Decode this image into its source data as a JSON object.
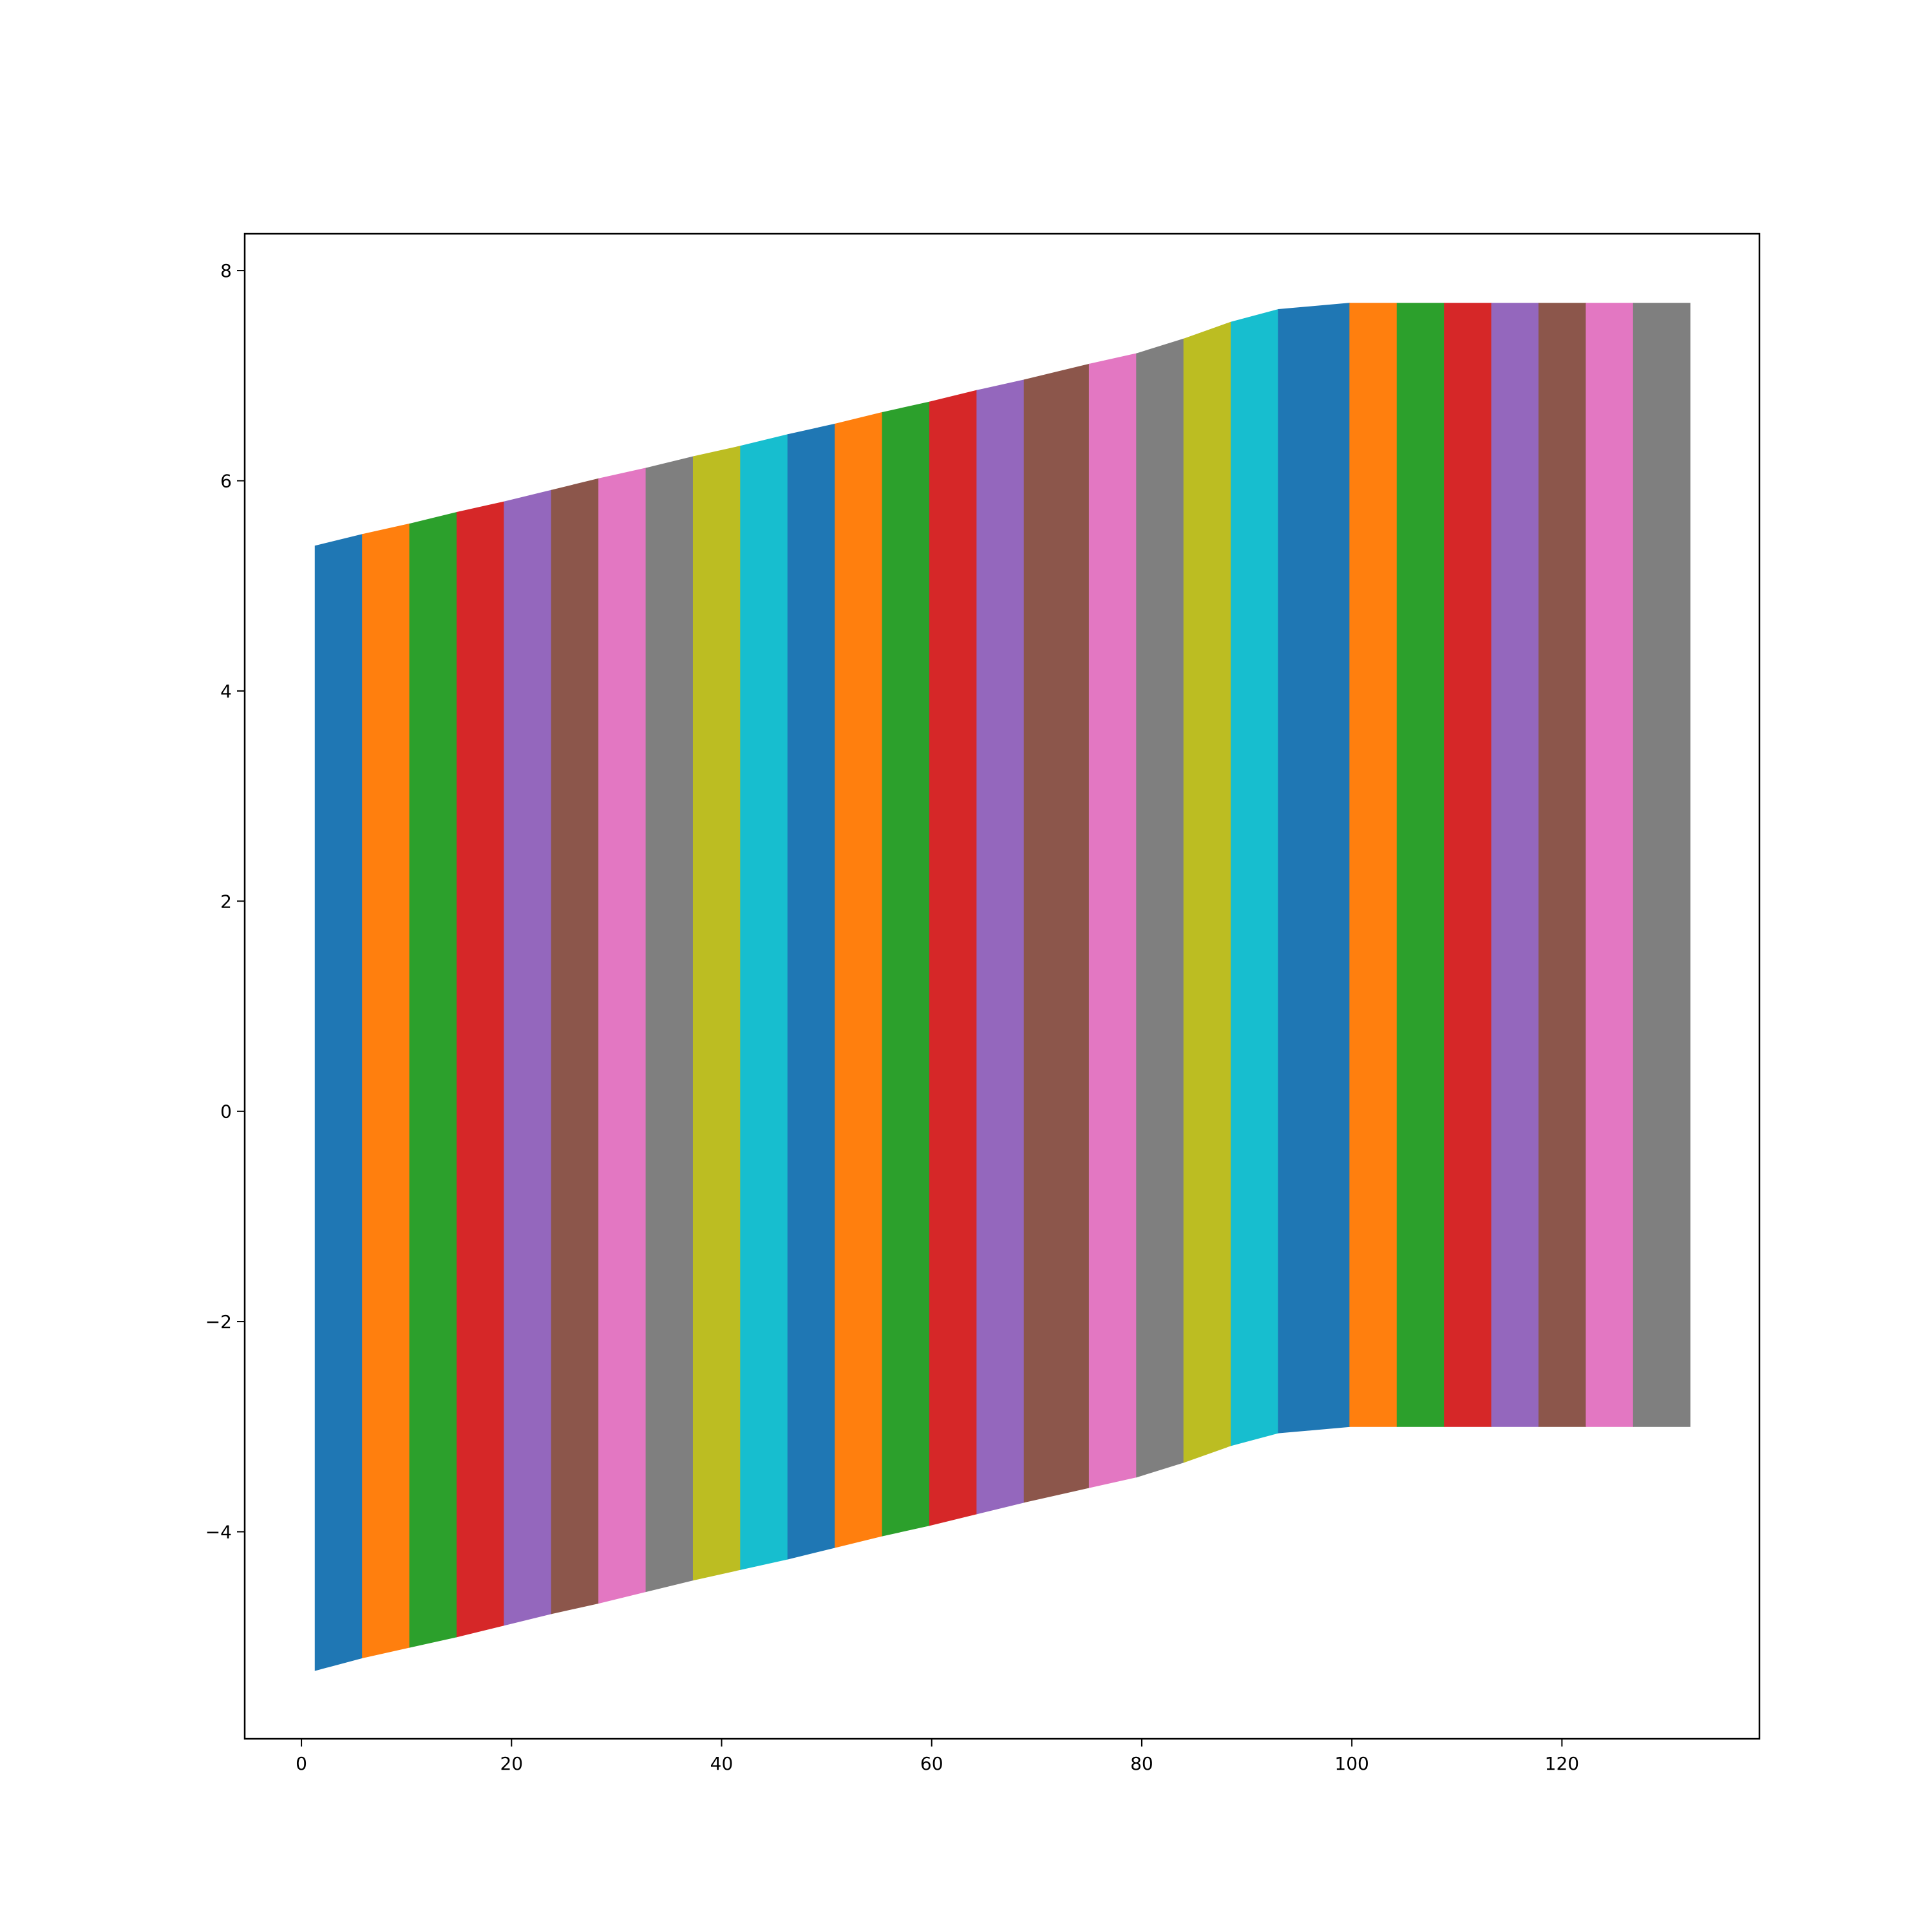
{
  "chart_data": {
    "type": "area",
    "title": "",
    "xlabel": "",
    "ylabel": "",
    "xlim": [
      -5.4,
      138.8
    ],
    "ylim": [
      -5.97,
      8.35
    ],
    "grid": false,
    "legend": "none",
    "xticks": [
      0,
      20,
      40,
      60,
      80,
      100,
      120
    ],
    "yticks": [
      -4,
      -2,
      0,
      2,
      4,
      6,
      8
    ],
    "xtick_labels": [
      "0",
      "20",
      "40",
      "60",
      "80",
      "100",
      "120"
    ],
    "ytick_labels": [
      "−4",
      "−2",
      "0",
      "2",
      "4",
      "6",
      "8"
    ],
    "palette": [
      "#1f77b4",
      "#ff7f0e",
      "#2ca02c",
      "#d62728",
      "#9467bd",
      "#8c564b",
      "#e377c2",
      "#7f7f7f",
      "#bcbd22",
      "#17becf"
    ],
    "bands": [
      {
        "x0": 1.3,
        "x1": 5.8,
        "top": [
          5.38,
          5.49
        ],
        "bottom": [
          -5.32,
          -5.2
        ]
      },
      {
        "x0": 5.8,
        "x1": 10.3,
        "top": [
          5.49,
          5.59
        ],
        "bottom": [
          -5.2,
          -5.1
        ]
      },
      {
        "x0": 10.3,
        "x1": 14.8,
        "top": [
          5.59,
          5.7
        ],
        "bottom": [
          -5.1,
          -5.0
        ]
      },
      {
        "x0": 14.8,
        "x1": 19.3,
        "top": [
          5.7,
          5.8
        ],
        "bottom": [
          -5.0,
          -4.89
        ]
      },
      {
        "x0": 19.3,
        "x1": 23.8,
        "top": [
          5.8,
          5.91
        ],
        "bottom": [
          -4.89,
          -4.78
        ]
      },
      {
        "x0": 23.8,
        "x1": 28.3,
        "top": [
          5.91,
          6.02
        ],
        "bottom": [
          -4.78,
          -4.68
        ]
      },
      {
        "x0": 28.3,
        "x1": 32.8,
        "top": [
          6.02,
          6.12
        ],
        "bottom": [
          -4.68,
          -4.57
        ]
      },
      {
        "x0": 32.8,
        "x1": 37.3,
        "top": [
          6.12,
          6.23
        ],
        "bottom": [
          -4.57,
          -4.46
        ]
      },
      {
        "x0": 37.3,
        "x1": 41.8,
        "top": [
          6.23,
          6.33
        ],
        "bottom": [
          -4.46,
          -4.36
        ]
      },
      {
        "x0": 41.8,
        "x1": 46.3,
        "top": [
          6.33,
          6.44
        ],
        "bottom": [
          -4.36,
          -4.26
        ]
      },
      {
        "x0": 46.3,
        "x1": 50.8,
        "top": [
          6.44,
          6.54
        ],
        "bottom": [
          -4.26,
          -4.15
        ]
      },
      {
        "x0": 50.8,
        "x1": 55.3,
        "top": [
          6.54,
          6.65
        ],
        "bottom": [
          -4.15,
          -4.04
        ]
      },
      {
        "x0": 55.3,
        "x1": 59.8,
        "top": [
          6.65,
          6.75
        ],
        "bottom": [
          -4.04,
          -3.94
        ]
      },
      {
        "x0": 59.8,
        "x1": 64.3,
        "top": [
          6.75,
          6.86
        ],
        "bottom": [
          -3.94,
          -3.83
        ]
      },
      {
        "x0": 64.3,
        "x1": 68.8,
        "top": [
          6.86,
          6.96
        ],
        "bottom": [
          -3.83,
          -3.72
        ]
      },
      {
        "x0": 68.8,
        "x1": 75.0,
        "top": [
          6.96,
          7.11
        ],
        "bottom": [
          -3.72,
          -3.58
        ]
      },
      {
        "x0": 75.0,
        "x1": 79.5,
        "top": [
          7.11,
          7.21
        ],
        "bottom": [
          -3.58,
          -3.48
        ]
      },
      {
        "x0": 79.5,
        "x1": 84.0,
        "top": [
          7.21,
          7.35
        ],
        "bottom": [
          -3.48,
          -3.34
        ]
      },
      {
        "x0": 84.0,
        "x1": 88.5,
        "top": [
          7.35,
          7.51
        ],
        "bottom": [
          -3.34,
          -3.18
        ]
      },
      {
        "x0": 88.5,
        "x1": 93.0,
        "top": [
          7.51,
          7.63
        ],
        "bottom": [
          -3.18,
          -3.06
        ]
      },
      {
        "x0": 93.0,
        "x1": 99.8,
        "top": [
          7.63,
          7.69
        ],
        "bottom": [
          -3.06,
          -3.0
        ]
      },
      {
        "x0": 99.8,
        "x1": 104.3,
        "top": [
          7.69,
          7.69
        ],
        "bottom": [
          -3.0,
          -3.0
        ]
      },
      {
        "x0": 104.3,
        "x1": 108.8,
        "top": [
          7.69,
          7.69
        ],
        "bottom": [
          -3.0,
          -3.0
        ]
      },
      {
        "x0": 108.8,
        "x1": 113.3,
        "top": [
          7.69,
          7.69
        ],
        "bottom": [
          -3.0,
          -3.0
        ]
      },
      {
        "x0": 113.3,
        "x1": 117.8,
        "top": [
          7.69,
          7.69
        ],
        "bottom": [
          -3.0,
          -3.0
        ]
      },
      {
        "x0": 117.8,
        "x1": 122.3,
        "top": [
          7.69,
          7.69
        ],
        "bottom": [
          -3.0,
          -3.0
        ]
      },
      {
        "x0": 122.3,
        "x1": 126.8,
        "top": [
          7.69,
          7.69
        ],
        "bottom": [
          -3.0,
          -3.0
        ]
      },
      {
        "x0": 126.8,
        "x1": 132.2,
        "top": [
          7.69,
          7.69
        ],
        "bottom": [
          -3.0,
          -3.0
        ]
      }
    ]
  }
}
